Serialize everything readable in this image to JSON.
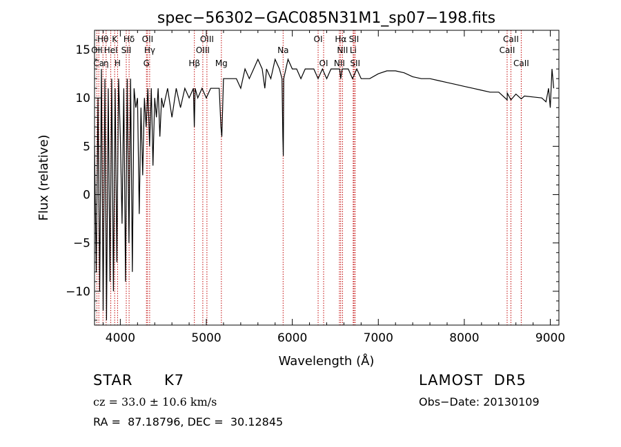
{
  "chart_data": {
    "type": "line",
    "title": "spec−56302−GAC085N31M1_sp07−198.fits",
    "xlabel": "Wavelength (Å)",
    "ylabel": "Flux (relative)",
    "xlim": [
      3700,
      9100
    ],
    "ylim": [
      -13.5,
      17
    ],
    "xticks": [
      4000,
      5000,
      6000,
      7000,
      8000,
      9000
    ],
    "yticks": [
      -10,
      -5,
      0,
      5,
      10,
      15
    ],
    "ytick_labels": [
      "−10",
      "−5",
      "0",
      "5",
      "10",
      "15"
    ],
    "grid": false,
    "series": [
      {
        "color": "#000000",
        "x": [
          3700,
          3720,
          3740,
          3760,
          3780,
          3800,
          3820,
          3840,
          3860,
          3880,
          3900,
          3920,
          3940,
          3960,
          3980,
          4000,
          4020,
          4040,
          4060,
          4080,
          4100,
          4120,
          4140,
          4160,
          4180,
          4200,
          4220,
          4240,
          4260,
          4280,
          4300,
          4320,
          4340,
          4360,
          4380,
          4400,
          4420,
          4440,
          4460,
          4480,
          4500,
          4550,
          4600,
          4650,
          4700,
          4750,
          4800,
          4850,
          4860,
          4870,
          4900,
          4950,
          5000,
          5050,
          5100,
          5150,
          5170,
          5180,
          5200,
          5250,
          5300,
          5350,
          5400,
          5450,
          5500,
          5550,
          5600,
          5650,
          5680,
          5700,
          5750,
          5800,
          5850,
          5880,
          5890,
          5895,
          5900,
          5950,
          6000,
          6050,
          6100,
          6150,
          6200,
          6250,
          6300,
          6350,
          6400,
          6450,
          6500,
          6550,
          6563,
          6580,
          6600,
          6650,
          6700,
          6750,
          6800,
          6900,
          7000,
          7100,
          7200,
          7300,
          7400,
          7500,
          7600,
          7700,
          7800,
          7900,
          8000,
          8100,
          8200,
          8300,
          8400,
          8498,
          8500,
          8542,
          8600,
          8662,
          8700,
          8800,
          8900,
          8950,
          8980,
          9000,
          9020,
          9040
        ],
        "y": [
          5,
          -8,
          10,
          -10,
          13,
          -12,
          12,
          -13,
          11,
          -9,
          12,
          -10,
          11,
          -7,
          12,
          6,
          -3,
          11,
          -9,
          12,
          -5,
          12,
          -8,
          11,
          9,
          10,
          -2,
          9,
          2,
          10,
          7,
          11,
          5,
          11,
          3,
          10,
          8,
          11,
          6,
          10,
          9,
          11,
          8,
          11,
          9,
          11,
          10,
          11,
          7,
          11,
          10,
          11,
          10,
          11,
          11,
          11,
          7,
          6,
          12,
          12,
          12,
          12,
          11,
          13,
          12,
          13,
          14,
          13,
          11,
          13,
          12,
          14,
          13,
          12,
          6,
          4,
          12,
          14,
          13,
          13,
          12,
          13,
          13,
          13,
          12,
          13,
          12,
          13,
          13,
          13,
          12,
          13,
          13,
          13,
          12,
          13,
          12,
          12,
          12.5,
          12.8,
          12.8,
          12.6,
          12.2,
          12,
          12,
          11.8,
          11.6,
          11.4,
          11.2,
          11,
          10.8,
          10.6,
          10.6,
          9.8,
          10.5,
          9.8,
          10.4,
          9.9,
          10.2,
          10.1,
          10,
          9.6,
          11,
          9,
          13,
          11
        ]
      }
    ],
    "line_markers": [
      {
        "label": "Hθ",
        "x": 3798,
        "row": 0
      },
      {
        "label": "K",
        "x": 3934,
        "row": 0
      },
      {
        "label": "Hδ",
        "x": 4102,
        "row": 0
      },
      {
        "label": "OII",
        "x": 4317,
        "row": 0
      },
      {
        "label": "OIII",
        "x": 5007,
        "row": 0
      },
      {
        "label": "OI",
        "x": 6300,
        "row": 0
      },
      {
        "label": "Hα",
        "x": 6563,
        "row": 0
      },
      {
        "label": "SII",
        "x": 6717,
        "row": 0
      },
      {
        "label": "CaII",
        "x": 8542,
        "row": 0
      },
      {
        "label": "OII",
        "x": 3727,
        "row": 1
      },
      {
        "label": "HeI",
        "x": 3889,
        "row": 1
      },
      {
        "label": "SII",
        "x": 4069,
        "row": 1
      },
      {
        "label": "Hγ",
        "x": 4341,
        "row": 1
      },
      {
        "label": "OIII",
        "x": 4959,
        "row": 1
      },
      {
        "label": "Na",
        "x": 5893,
        "row": 1
      },
      {
        "label": "NII",
        "x": 6584,
        "row": 1
      },
      {
        "label": "Li",
        "x": 6708,
        "row": 1
      },
      {
        "label": "CaII",
        "x": 8498,
        "row": 1
      },
      {
        "label": "Ca",
        "x": 3750,
        "row": 2
      },
      {
        "label": "η",
        "x": 3835,
        "row": 2
      },
      {
        "label": "H",
        "x": 3968,
        "row": 2
      },
      {
        "label": "G",
        "x": 4304,
        "row": 2
      },
      {
        "label": "Hβ",
        "x": 4861,
        "row": 2
      },
      {
        "label": "Mg",
        "x": 5175,
        "row": 2
      },
      {
        "label": "OI",
        "x": 6364,
        "row": 2
      },
      {
        "label": "NII",
        "x": 6548,
        "row": 2
      },
      {
        "label": "SII",
        "x": 6731,
        "row": 2
      },
      {
        "label": "CaII",
        "x": 8662,
        "row": 2
      }
    ]
  },
  "info": {
    "object_class": "STAR",
    "subclass": "K7",
    "cz": "cz = 33.0 ± 10.6 km/s",
    "coords": "RA =  87.18796, DEC =  30.12845",
    "survey": "LAMOST  DR5",
    "obs_date": "Obs−Date: 20130109"
  }
}
